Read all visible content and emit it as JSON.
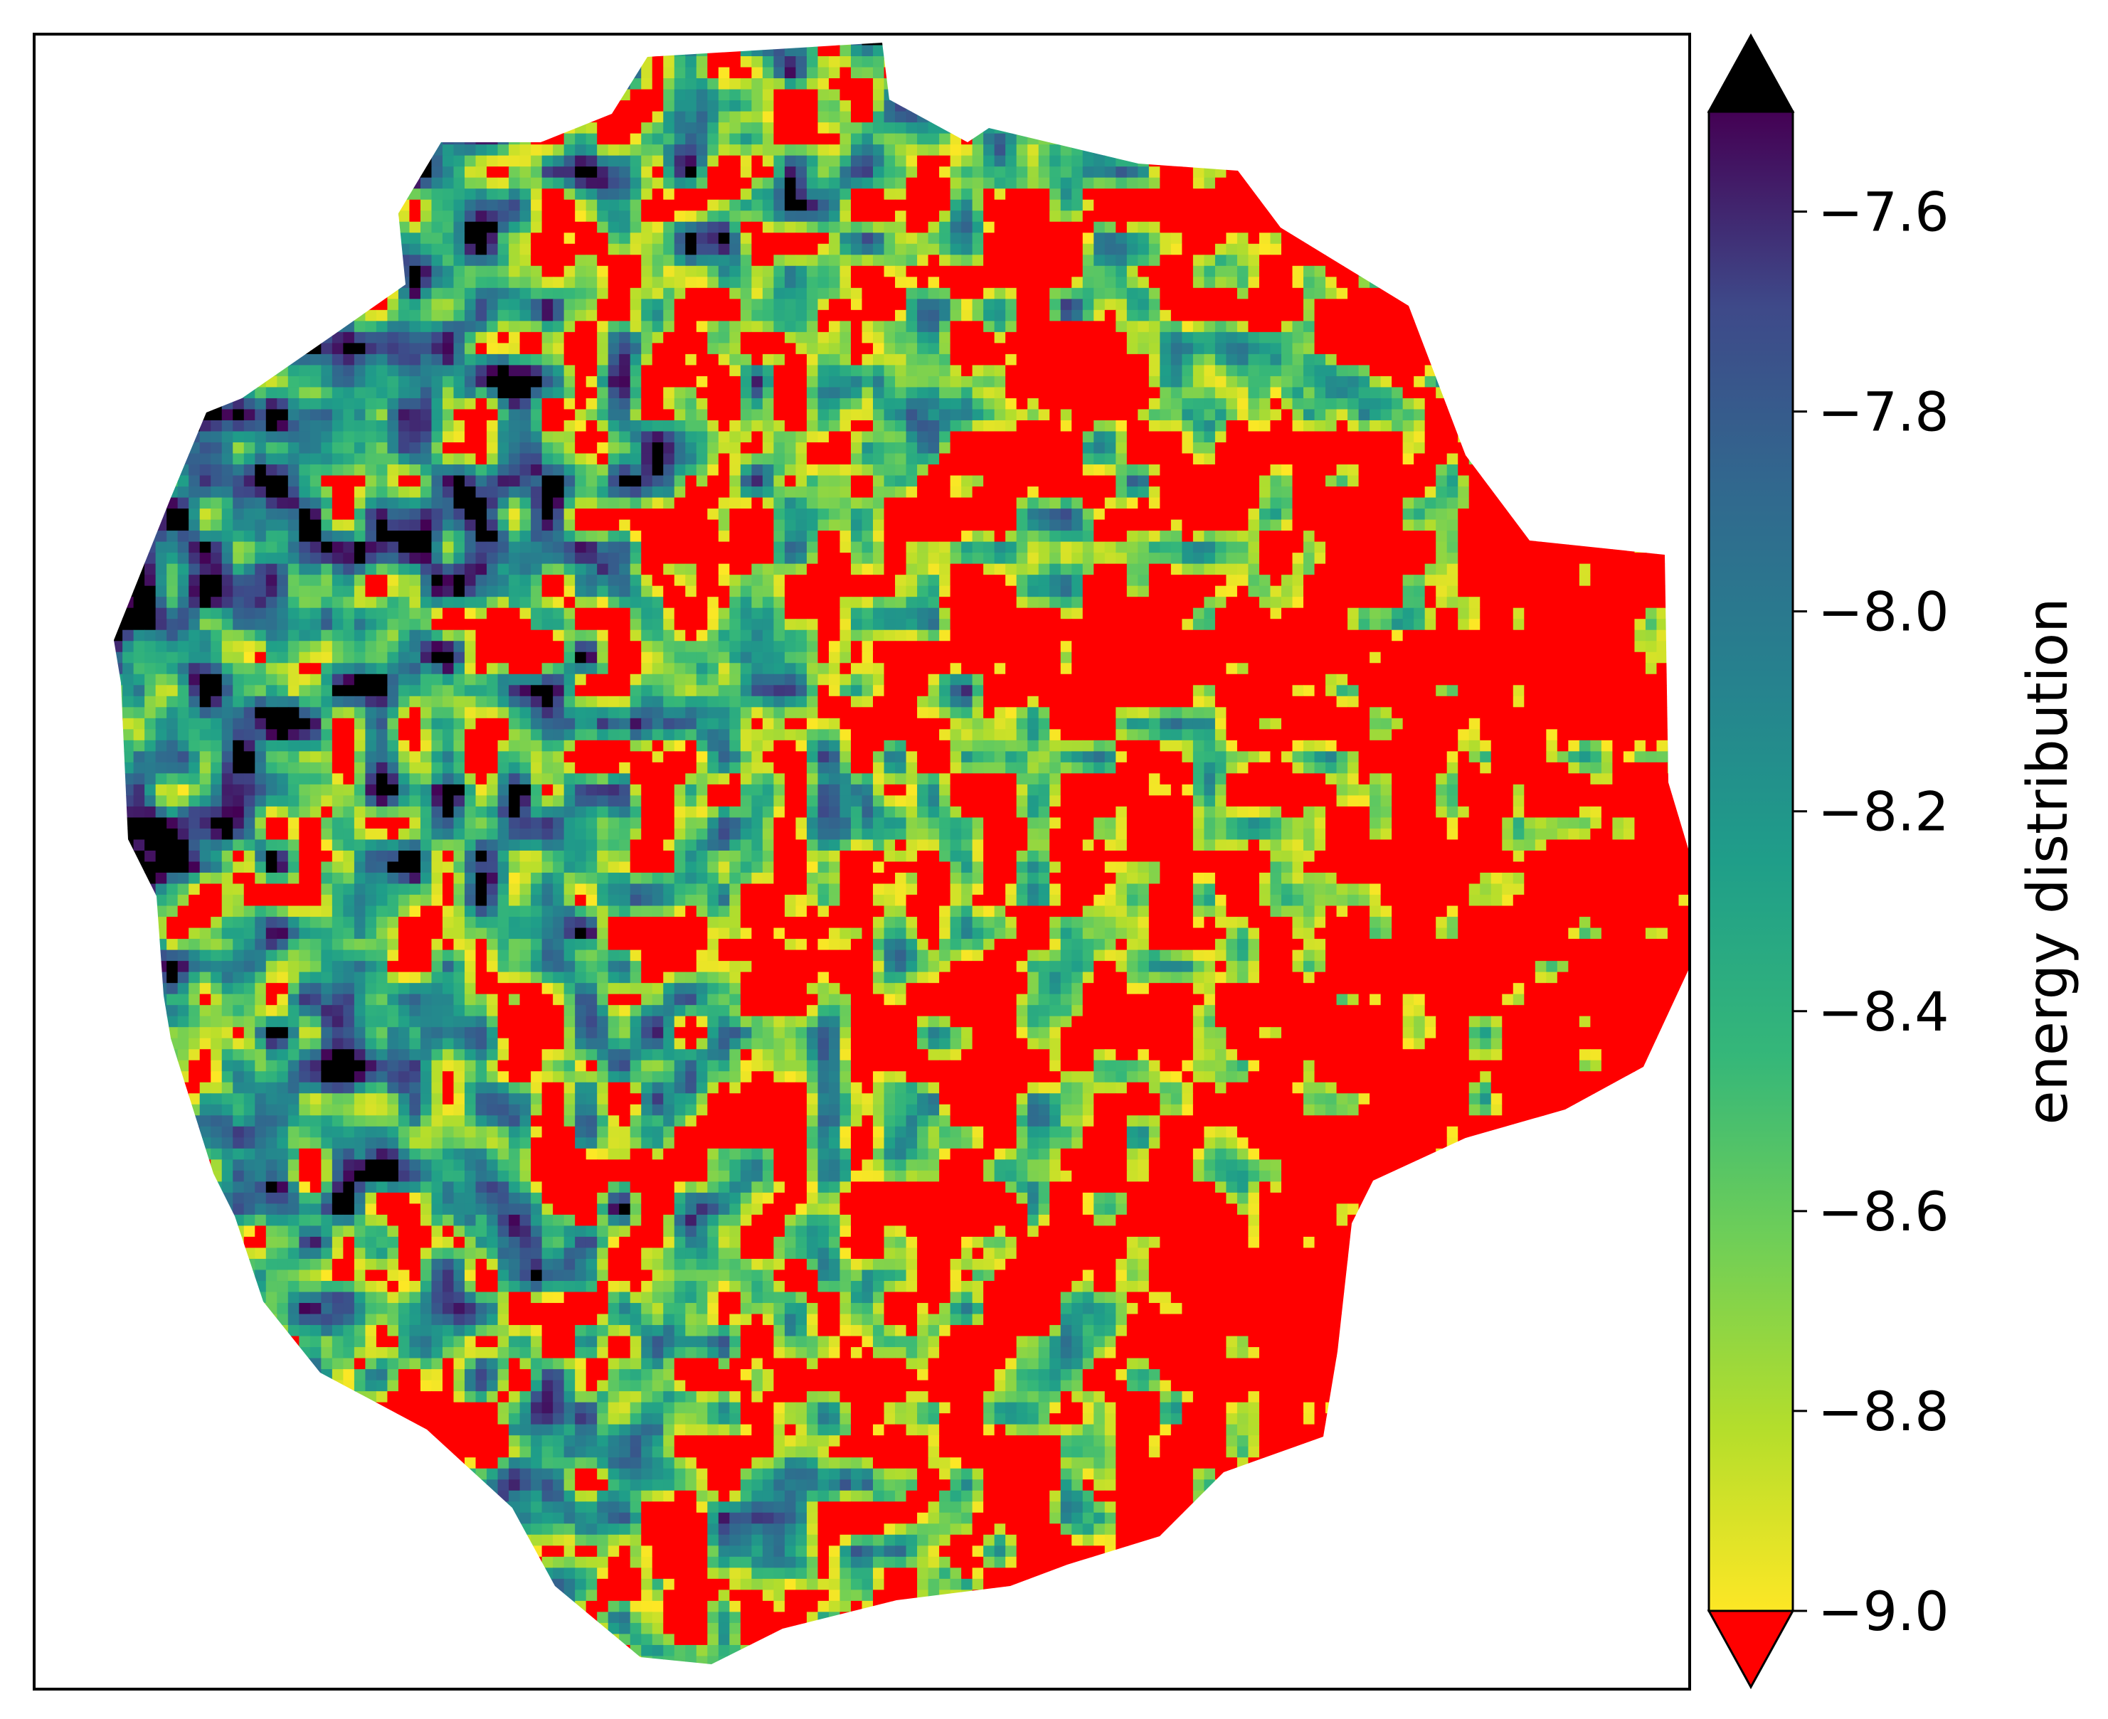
{
  "chart_data": {
    "type": "heatmap",
    "title": "",
    "xlabel": "",
    "ylabel": "",
    "x_ticks": [],
    "y_ticks": [],
    "colorbar": {
      "label": "energy distribution",
      "colormap": "viridis_r",
      "range": [
        -9.0,
        -7.5
      ],
      "ticks": [
        -7.6,
        -7.8,
        -8.0,
        -8.2,
        -8.4,
        -8.6,
        -8.8,
        -9.0
      ],
      "tick_labels": [
        "−7.6",
        "−7.8",
        "−8.0",
        "−8.2",
        "−8.4",
        "−8.6",
        "−8.8",
        "−9.0"
      ],
      "extend": "both",
      "over_color": "#000000",
      "under_color": "#ff0000"
    },
    "colors": {
      "under": "#ff0000",
      "over": "#000000",
      "viridis_low": "#fde725",
      "viridis_high": "#440154",
      "background": "#ffffff"
    },
    "description_values": {
      "map_shape": "irregular roughly circular mosaic",
      "red_fraction_estimate": 0.4,
      "red_region_side": "right"
    }
  }
}
